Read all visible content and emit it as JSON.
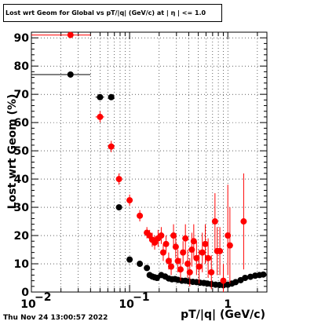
{
  "timestamp": "Thu Nov 24 13:00:57 2022",
  "chart_data": {
    "type": "scatter",
    "title": "Lost wrt Geom for Global vs pT/|q| (GeV/c) at | η | <= 1.0",
    "xlabel": "pT/|q| (GeV/c)",
    "ylabel": "Lost wrt Geom (%)",
    "xscale": "log",
    "xlim": [
      0.01,
      2.5
    ],
    "ylim": [
      0,
      92
    ],
    "grid": true,
    "y_ticks": [
      0,
      10,
      20,
      30,
      40,
      50,
      60,
      70,
      80,
      90
    ],
    "y_tick_labels": [
      "0",
      "10",
      "20",
      "30",
      "40",
      "50",
      "60",
      "70",
      "80",
      "90"
    ],
    "x_ticks": [
      0.01,
      0.1,
      1
    ],
    "x_tick_labels": [
      "10",
      "10",
      "1"
    ],
    "x_tick_exponents": [
      "−2",
      "−1",
      ""
    ],
    "series": [
      {
        "color": "#000000",
        "points": [
          {
            "x": 0.025,
            "y": 77,
            "xlo": 0.01,
            "xhi": 0.04,
            "ylo": 77,
            "yhi": 77
          },
          {
            "x": 0.05,
            "y": 69,
            "xlo": 0.045,
            "xhi": 0.055,
            "ylo": 69,
            "yhi": 69
          },
          {
            "x": 0.065,
            "y": 69,
            "xlo": 0.06,
            "xhi": 0.07,
            "ylo": 69,
            "yhi": 69
          },
          {
            "x": 0.078,
            "y": 30,
            "xlo": 0.074,
            "xhi": 0.082,
            "ylo": 30,
            "yhi": 30
          },
          {
            "x": 0.1,
            "y": 11.5,
            "xlo": 0.094,
            "xhi": 0.106,
            "ylo": 11.5,
            "yhi": 11.5
          },
          {
            "x": 0.127,
            "y": 10,
            "xlo": 0.12,
            "xhi": 0.134,
            "ylo": 10,
            "yhi": 10
          },
          {
            "x": 0.15,
            "y": 8.5,
            "xlo": 0.145,
            "xhi": 0.155,
            "ylo": 8.5,
            "yhi": 8.5
          },
          {
            "x": 0.16,
            "y": 6,
            "xlo": 0.157,
            "xhi": 0.163,
            "ylo": 6,
            "yhi": 6
          },
          {
            "x": 0.17,
            "y": 5.5,
            "xlo": 0.167,
            "xhi": 0.173,
            "ylo": 5.5,
            "yhi": 5.5
          },
          {
            "x": 0.18,
            "y": 5.2,
            "xlo": 0.177,
            "xhi": 0.183,
            "ylo": 5.2,
            "yhi": 5.2
          },
          {
            "x": 0.19,
            "y": 5,
            "xlo": 0.187,
            "xhi": 0.193,
            "ylo": 5,
            "yhi": 5
          },
          {
            "x": 0.21,
            "y": 6,
            "xlo": 0.205,
            "xhi": 0.215,
            "ylo": 6,
            "yhi": 6
          },
          {
            "x": 0.23,
            "y": 5.5,
            "xlo": 0.225,
            "xhi": 0.235,
            "ylo": 5.5,
            "yhi": 5.5
          },
          {
            "x": 0.25,
            "y": 4.8,
            "xlo": 0.245,
            "xhi": 0.255,
            "ylo": 4.8,
            "yhi": 4.8
          },
          {
            "x": 0.27,
            "y": 4.5,
            "xlo": 0.265,
            "xhi": 0.275,
            "ylo": 4.5,
            "yhi": 4.5
          },
          {
            "x": 0.29,
            "y": 4.6,
            "xlo": 0.285,
            "xhi": 0.295,
            "ylo": 4.6,
            "yhi": 4.6
          },
          {
            "x": 0.31,
            "y": 4.3,
            "xlo": 0.305,
            "xhi": 0.315,
            "ylo": 4.3,
            "yhi": 4.3
          },
          {
            "x": 0.34,
            "y": 4,
            "xlo": 0.335,
            "xhi": 0.345,
            "ylo": 4,
            "yhi": 4
          },
          {
            "x": 0.37,
            "y": 4,
            "xlo": 0.365,
            "xhi": 0.375,
            "ylo": 4,
            "yhi": 4
          },
          {
            "x": 0.4,
            "y": 3.8,
            "xlo": 0.395,
            "xhi": 0.405,
            "ylo": 3.8,
            "yhi": 3.8
          },
          {
            "x": 0.44,
            "y": 3.6,
            "xlo": 0.435,
            "xhi": 0.445,
            "ylo": 3.6,
            "yhi": 3.6
          },
          {
            "x": 0.48,
            "y": 3.5,
            "xlo": 0.475,
            "xhi": 0.485,
            "ylo": 3.5,
            "yhi": 3.5
          },
          {
            "x": 0.52,
            "y": 3.3,
            "xlo": 0.515,
            "xhi": 0.525,
            "ylo": 3.3,
            "yhi": 3.3
          },
          {
            "x": 0.57,
            "y": 3.2,
            "xlo": 0.565,
            "xhi": 0.575,
            "ylo": 3.2,
            "yhi": 3.2
          },
          {
            "x": 0.62,
            "y": 3,
            "xlo": 0.615,
            "xhi": 0.625,
            "ylo": 3,
            "yhi": 3
          },
          {
            "x": 0.68,
            "y": 2.8,
            "xlo": 0.675,
            "xhi": 0.685,
            "ylo": 2.8,
            "yhi": 2.8
          },
          {
            "x": 0.75,
            "y": 2.6,
            "xlo": 0.745,
            "xhi": 0.755,
            "ylo": 2.6,
            "yhi": 2.6
          },
          {
            "x": 0.82,
            "y": 2.5,
            "xlo": 0.815,
            "xhi": 0.825,
            "ylo": 2.5,
            "yhi": 2.5
          },
          {
            "x": 0.9,
            "y": 2.4,
            "xlo": 0.895,
            "xhi": 0.905,
            "ylo": 2.4,
            "yhi": 2.4
          },
          {
            "x": 1.0,
            "y": 2.6,
            "xlo": 0.995,
            "xhi": 1.005,
            "ylo": 2.6,
            "yhi": 2.6
          },
          {
            "x": 1.1,
            "y": 3,
            "xlo": 1.095,
            "xhi": 1.105,
            "ylo": 3,
            "yhi": 3
          },
          {
            "x": 1.2,
            "y": 3.5,
            "xlo": 1.195,
            "xhi": 1.205,
            "ylo": 3.5,
            "yhi": 3.5
          },
          {
            "x": 1.35,
            "y": 4.2,
            "xlo": 1.345,
            "xhi": 1.355,
            "ylo": 4.2,
            "yhi": 4.2
          },
          {
            "x": 1.5,
            "y": 5,
            "xlo": 1.495,
            "xhi": 1.505,
            "ylo": 5,
            "yhi": 5
          },
          {
            "x": 1.7,
            "y": 5.4,
            "xlo": 1.695,
            "xhi": 1.705,
            "ylo": 5.4,
            "yhi": 5.4
          },
          {
            "x": 1.9,
            "y": 5.8,
            "xlo": 1.895,
            "xhi": 1.905,
            "ylo": 5.8,
            "yhi": 5.8
          },
          {
            "x": 2.1,
            "y": 6,
            "xlo": 2.095,
            "xhi": 2.105,
            "ylo": 6,
            "yhi": 6
          },
          {
            "x": 2.3,
            "y": 6.2,
            "xlo": 2.295,
            "xhi": 2.305,
            "ylo": 6.2,
            "yhi": 6.2
          }
        ]
      },
      {
        "color": "#ff0000",
        "points": [
          {
            "x": 0.025,
            "y": 91,
            "xlo": 0.01,
            "xhi": 0.04,
            "ylo": 91,
            "yhi": 91
          },
          {
            "x": 0.05,
            "y": 62,
            "xlo": 0.045,
            "xhi": 0.055,
            "ylo": 60,
            "yhi": 64
          },
          {
            "x": 0.065,
            "y": 51.5,
            "xlo": 0.06,
            "xhi": 0.07,
            "ylo": 49.5,
            "yhi": 53.5
          },
          {
            "x": 0.078,
            "y": 40,
            "xlo": 0.074,
            "xhi": 0.082,
            "ylo": 38,
            "yhi": 42
          },
          {
            "x": 0.1,
            "y": 32.5,
            "xlo": 0.094,
            "xhi": 0.106,
            "ylo": 30.5,
            "yhi": 34.5
          },
          {
            "x": 0.127,
            "y": 27,
            "xlo": 0.12,
            "xhi": 0.134,
            "ylo": 25,
            "yhi": 29
          },
          {
            "x": 0.15,
            "y": 21,
            "xlo": 0.145,
            "xhi": 0.155,
            "ylo": 19,
            "yhi": 23
          },
          {
            "x": 0.16,
            "y": 20,
            "xlo": 0.157,
            "xhi": 0.163,
            "ylo": 18,
            "yhi": 22
          },
          {
            "x": 0.17,
            "y": 18.5,
            "xlo": 0.167,
            "xhi": 0.173,
            "ylo": 16,
            "yhi": 21
          },
          {
            "x": 0.18,
            "y": 17.5,
            "xlo": 0.177,
            "xhi": 0.183,
            "ylo": 15,
            "yhi": 20
          },
          {
            "x": 0.195,
            "y": 19,
            "xlo": 0.19,
            "xhi": 0.2,
            "ylo": 16,
            "yhi": 22
          },
          {
            "x": 0.21,
            "y": 20,
            "xlo": 0.205,
            "xhi": 0.215,
            "ylo": 17,
            "yhi": 23
          },
          {
            "x": 0.22,
            "y": 14,
            "xlo": 0.215,
            "xhi": 0.225,
            "ylo": 11,
            "yhi": 17
          },
          {
            "x": 0.235,
            "y": 17,
            "xlo": 0.23,
            "xhi": 0.24,
            "ylo": 14,
            "yhi": 20
          },
          {
            "x": 0.25,
            "y": 11,
            "xlo": 0.245,
            "xhi": 0.255,
            "ylo": 8,
            "yhi": 14
          },
          {
            "x": 0.265,
            "y": 9,
            "xlo": 0.26,
            "xhi": 0.27,
            "ylo": 6,
            "yhi": 12
          },
          {
            "x": 0.28,
            "y": 20,
            "xlo": 0.275,
            "xhi": 0.285,
            "ylo": 16,
            "yhi": 24
          },
          {
            "x": 0.295,
            "y": 16,
            "xlo": 0.29,
            "xhi": 0.3,
            "ylo": 12,
            "yhi": 20
          },
          {
            "x": 0.31,
            "y": 11,
            "xlo": 0.305,
            "xhi": 0.315,
            "ylo": 7,
            "yhi": 15
          },
          {
            "x": 0.33,
            "y": 8,
            "xlo": 0.325,
            "xhi": 0.335,
            "ylo": 4,
            "yhi": 12
          },
          {
            "x": 0.35,
            "y": 14,
            "xlo": 0.345,
            "xhi": 0.355,
            "ylo": 10,
            "yhi": 18
          },
          {
            "x": 0.37,
            "y": 19,
            "xlo": 0.365,
            "xhi": 0.375,
            "ylo": 14,
            "yhi": 24
          },
          {
            "x": 0.39,
            "y": 10,
            "xlo": 0.385,
            "xhi": 0.395,
            "ylo": 5,
            "yhi": 15
          },
          {
            "x": 0.41,
            "y": 7,
            "xlo": 0.405,
            "xhi": 0.415,
            "ylo": 2,
            "yhi": 12
          },
          {
            "x": 0.43,
            "y": 15,
            "xlo": 0.425,
            "xhi": 0.435,
            "ylo": 9,
            "yhi": 21
          },
          {
            "x": 0.45,
            "y": 18,
            "xlo": 0.445,
            "xhi": 0.455,
            "ylo": 12,
            "yhi": 24
          },
          {
            "x": 0.48,
            "y": 12,
            "xlo": 0.475,
            "xhi": 0.485,
            "ylo": 6,
            "yhi": 18
          },
          {
            "x": 0.51,
            "y": 9,
            "xlo": 0.505,
            "xhi": 0.515,
            "ylo": 3,
            "yhi": 15
          },
          {
            "x": 0.55,
            "y": 14,
            "xlo": 0.545,
            "xhi": 0.555,
            "ylo": 7,
            "yhi": 21
          },
          {
            "x": 0.59,
            "y": 17,
            "xlo": 0.585,
            "xhi": 0.595,
            "ylo": 10,
            "yhi": 24
          },
          {
            "x": 0.63,
            "y": 12,
            "xlo": 0.625,
            "xhi": 0.635,
            "ylo": 5,
            "yhi": 19
          },
          {
            "x": 0.68,
            "y": 7,
            "xlo": 0.675,
            "xhi": 0.685,
            "ylo": 1,
            "yhi": 13
          },
          {
            "x": 0.74,
            "y": 25,
            "xlo": 0.735,
            "xhi": 0.745,
            "ylo": 15,
            "yhi": 35
          },
          {
            "x": 0.78,
            "y": 14.5,
            "xlo": 0.775,
            "xhi": 0.785,
            "ylo": 6,
            "yhi": 23
          },
          {
            "x": 0.83,
            "y": 14.5,
            "xlo": 0.825,
            "xhi": 0.835,
            "ylo": 6,
            "yhi": 23
          },
          {
            "x": 0.9,
            "y": 4,
            "xlo": 0.895,
            "xhi": 0.905,
            "ylo": 0,
            "yhi": 10
          },
          {
            "x": 1.0,
            "y": 20,
            "xlo": 0.995,
            "xhi": 1.005,
            "ylo": 6,
            "yhi": 38
          },
          {
            "x": 1.05,
            "y": 16.5,
            "xlo": 1.045,
            "xhi": 1.055,
            "ylo": 3,
            "yhi": 30
          },
          {
            "x": 1.45,
            "y": 25,
            "xlo": 1.445,
            "xhi": 1.455,
            "ylo": 8,
            "yhi": 42
          }
        ]
      }
    ]
  }
}
